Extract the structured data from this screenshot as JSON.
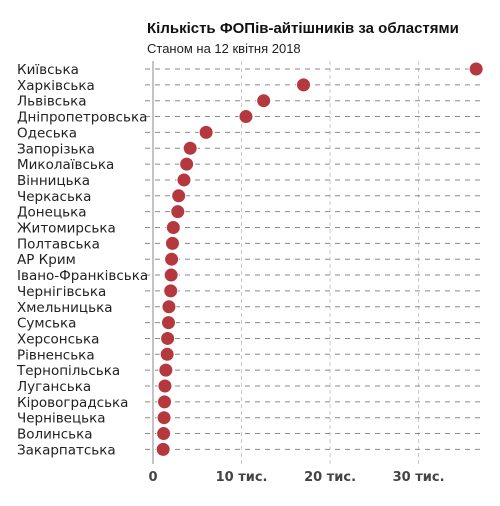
{
  "chart_data": {
    "type": "scatter",
    "title": "Кількість ФОПів-айтішників за областями",
    "subtitle": "Станом на 12 квітня 2018",
    "categories": [
      "Київська",
      "Харківська",
      "Львівська",
      "Дніпропетровська",
      "Одеська",
      "Запорізька",
      "Миколаївська",
      "Вінницька",
      "Черкаська",
      "Донецька",
      "Житомирська",
      "Полтавська",
      "АР Крим",
      "Івано-Франківська",
      "Чернігівська",
      "Хмельницька",
      "Сумська",
      "Херсонська",
      "Рівненська",
      "Тернопільська",
      "Луганська",
      "Кіровоградська",
      "Чернівецька",
      "Волинська",
      "Закарпатська"
    ],
    "values": [
      36500,
      17000,
      12500,
      10500,
      6000,
      4200,
      3800,
      3500,
      2900,
      2800,
      2300,
      2200,
      2100,
      2050,
      2000,
      1800,
      1750,
      1650,
      1600,
      1450,
      1350,
      1300,
      1250,
      1200,
      1150
    ],
    "xlim": [
      0,
      37500
    ],
    "x_ticks": [
      0,
      10000,
      20000,
      30000
    ],
    "x_tick_labels": [
      "0",
      "10 тис.",
      "20 тис.",
      "30 тис."
    ],
    "grid": true,
    "marker_color": "#b5383e"
  }
}
